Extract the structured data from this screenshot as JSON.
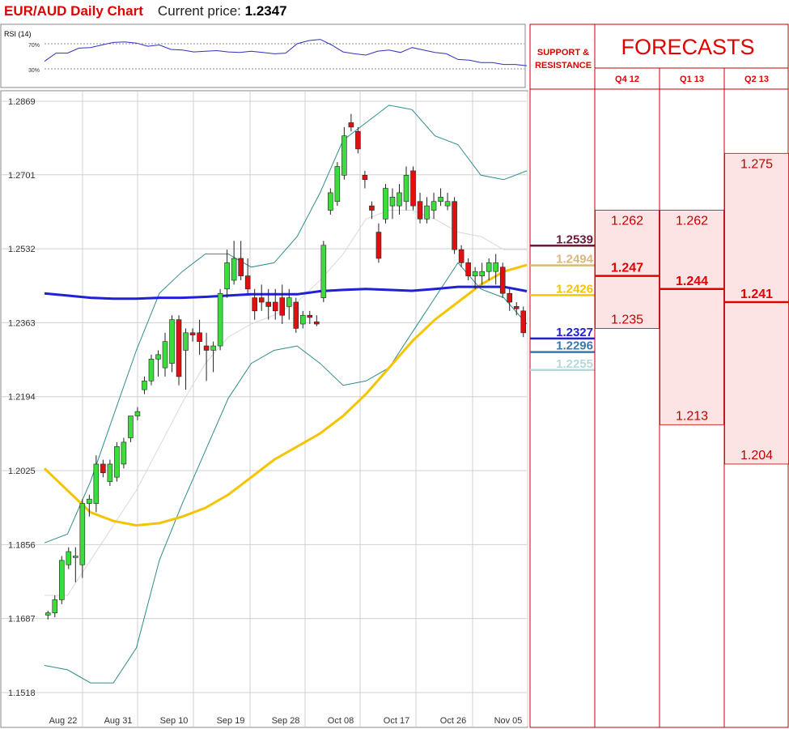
{
  "header": {
    "title": "EUR/AUD Daily Chart",
    "price_label": "Current price:",
    "price_value": "1.2347"
  },
  "rsi_panel": {
    "label": "RSI (14)",
    "upper_label": "70%",
    "lower_label": "30%",
    "values": [
      42,
      55,
      55,
      63,
      64,
      68,
      72,
      73,
      71,
      66,
      68,
      61,
      60,
      57,
      58,
      59,
      57,
      56,
      58,
      56,
      54,
      55,
      70,
      75,
      77,
      68,
      57,
      54,
      52,
      58,
      60,
      56,
      64,
      60,
      56,
      54,
      45,
      44,
      40,
      40,
      37,
      37,
      35
    ]
  },
  "support_panel": {
    "title_line1": "SUPPORT &",
    "title_line2": "RESISTANCE"
  },
  "forecast_panel": {
    "title": "FORECASTS",
    "columns": [
      {
        "label": "Q4 12",
        "high": "1.262",
        "mid": "1.247",
        "low": "1.235",
        "high_v": 1.262,
        "mid_v": 1.247,
        "low_v": 1.235
      },
      {
        "label": "Q1 13",
        "high": "1.262",
        "mid": "1.244",
        "low": "1.213",
        "high_v": 1.262,
        "mid_v": 1.244,
        "low_v": 1.213
      },
      {
        "label": "Q2 13",
        "high": "1.275",
        "mid": "1.241",
        "low": "1.204",
        "high_v": 1.275,
        "mid_v": 1.241,
        "low_v": 1.204
      }
    ]
  },
  "colors": {
    "title_red": "#e00000",
    "bull_candle": "#3ddc3d",
    "bear_candle": "#e01010",
    "ma_blue": "#2020d8",
    "ma_yellow": "#f5c400",
    "bollinger": "#2e8b8b",
    "bollinger_mid": "#d8d8d8",
    "forecast_fill": "#fde4e4"
  },
  "chart_data": {
    "type": "candlestick",
    "title": "EUR/AUD Daily Chart",
    "ylim": [
      1.1518,
      1.2869
    ],
    "y_ticks": [
      "1.2869",
      "1.2701",
      "1.2532",
      "1.2363",
      "1.2194",
      "1.2025",
      "1.1856",
      "1.1687",
      "1.1518"
    ],
    "x_ticks": [
      "Aug 22",
      "Aug 31",
      "Sep 10",
      "Sep 19",
      "Sep 28",
      "Oct 08",
      "Oct 17",
      "Oct 26",
      "Nov 05"
    ],
    "candles": [
      {
        "o": 1.1695,
        "h": 1.1705,
        "l": 1.1685,
        "c": 1.17
      },
      {
        "o": 1.17,
        "h": 1.174,
        "l": 1.169,
        "c": 1.173
      },
      {
        "o": 1.173,
        "h": 1.183,
        "l": 1.172,
        "c": 1.182
      },
      {
        "o": 1.181,
        "h": 1.185,
        "l": 1.18,
        "c": 1.184
      },
      {
        "o": 1.183,
        "h": 1.185,
        "l": 1.177,
        "c": 1.183
      },
      {
        "o": 1.181,
        "h": 1.196,
        "l": 1.178,
        "c": 1.195
      },
      {
        "o": 1.195,
        "h": 1.197,
        "l": 1.192,
        "c": 1.196
      },
      {
        "o": 1.195,
        "h": 1.206,
        "l": 1.193,
        "c": 1.204
      },
      {
        "o": 1.204,
        "h": 1.205,
        "l": 1.201,
        "c": 1.202
      },
      {
        "o": 1.2,
        "h": 1.205,
        "l": 1.199,
        "c": 1.204
      },
      {
        "o": 1.201,
        "h": 1.209,
        "l": 1.2,
        "c": 1.208
      },
      {
        "o": 1.204,
        "h": 1.21,
        "l": 1.203,
        "c": 1.209
      },
      {
        "o": 1.21,
        "h": 1.215,
        "l": 1.209,
        "c": 1.215
      },
      {
        "o": 1.215,
        "h": 1.217,
        "l": 1.214,
        "c": 1.216
      },
      {
        "o": 1.221,
        "h": 1.224,
        "l": 1.22,
        "c": 1.223
      },
      {
        "o": 1.223,
        "h": 1.229,
        "l": 1.222,
        "c": 1.228
      },
      {
        "o": 1.228,
        "h": 1.23,
        "l": 1.224,
        "c": 1.229
      },
      {
        "o": 1.226,
        "h": 1.234,
        "l": 1.224,
        "c": 1.232
      },
      {
        "o": 1.227,
        "h": 1.238,
        "l": 1.225,
        "c": 1.237
      },
      {
        "o": 1.237,
        "h": 1.238,
        "l": 1.222,
        "c": 1.224
      },
      {
        "o": 1.23,
        "h": 1.235,
        "l": 1.221,
        "c": 1.234
      },
      {
        "o": 1.234,
        "h": 1.235,
        "l": 1.232,
        "c": 1.2335
      },
      {
        "o": 1.234,
        "h": 1.237,
        "l": 1.229,
        "c": 1.232
      },
      {
        "o": 1.231,
        "h": 1.234,
        "l": 1.223,
        "c": 1.23
      },
      {
        "o": 1.23,
        "h": 1.232,
        "l": 1.225,
        "c": 1.231
      },
      {
        "o": 1.231,
        "h": 1.244,
        "l": 1.23,
        "c": 1.243
      },
      {
        "o": 1.244,
        "h": 1.253,
        "l": 1.242,
        "c": 1.25
      },
      {
        "o": 1.246,
        "h": 1.255,
        "l": 1.245,
        "c": 1.251
      },
      {
        "o": 1.251,
        "h": 1.255,
        "l": 1.246,
        "c": 1.247
      },
      {
        "o": 1.247,
        "h": 1.251,
        "l": 1.243,
        "c": 1.244
      },
      {
        "o": 1.242,
        "h": 1.244,
        "l": 1.237,
        "c": 1.239
      },
      {
        "o": 1.242,
        "h": 1.245,
        "l": 1.239,
        "c": 1.241
      },
      {
        "o": 1.241,
        "h": 1.244,
        "l": 1.237,
        "c": 1.24
      },
      {
        "o": 1.241,
        "h": 1.244,
        "l": 1.237,
        "c": 1.239
      },
      {
        "o": 1.242,
        "h": 1.245,
        "l": 1.236,
        "c": 1.238
      },
      {
        "o": 1.24,
        "h": 1.244,
        "l": 1.237,
        "c": 1.242
      },
      {
        "o": 1.241,
        "h": 1.242,
        "l": 1.234,
        "c": 1.235
      },
      {
        "o": 1.236,
        "h": 1.239,
        "l": 1.235,
        "c": 1.238
      },
      {
        "o": 1.238,
        "h": 1.239,
        "l": 1.236,
        "c": 1.2375
      },
      {
        "o": 1.2365,
        "h": 1.238,
        "l": 1.2355,
        "c": 1.236
      },
      {
        "o": 1.242,
        "h": 1.255,
        "l": 1.241,
        "c": 1.254
      },
      {
        "o": 1.262,
        "h": 1.267,
        "l": 1.261,
        "c": 1.266
      },
      {
        "o": 1.264,
        "h": 1.273,
        "l": 1.263,
        "c": 1.272
      },
      {
        "o": 1.27,
        "h": 1.281,
        "l": 1.269,
        "c": 1.279
      },
      {
        "o": 1.282,
        "h": 1.284,
        "l": 1.28,
        "c": 1.281
      },
      {
        "o": 1.28,
        "h": 1.281,
        "l": 1.275,
        "c": 1.276
      },
      {
        "o": 1.27,
        "h": 1.271,
        "l": 1.267,
        "c": 1.269
      },
      {
        "o": 1.263,
        "h": 1.264,
        "l": 1.26,
        "c": 1.262
      },
      {
        "o": 1.257,
        "h": 1.259,
        "l": 1.25,
        "c": 1.251
      },
      {
        "o": 1.26,
        "h": 1.268,
        "l": 1.259,
        "c": 1.267
      },
      {
        "o": 1.263,
        "h": 1.267,
        "l": 1.26,
        "c": 1.265
      },
      {
        "o": 1.263,
        "h": 1.268,
        "l": 1.261,
        "c": 1.266
      },
      {
        "o": 1.264,
        "h": 1.272,
        "l": 1.262,
        "c": 1.27
      },
      {
        "o": 1.271,
        "h": 1.272,
        "l": 1.262,
        "c": 1.263
      },
      {
        "o": 1.264,
        "h": 1.266,
        "l": 1.259,
        "c": 1.26
      },
      {
        "o": 1.26,
        "h": 1.265,
        "l": 1.259,
        "c": 1.263
      },
      {
        "o": 1.262,
        "h": 1.266,
        "l": 1.26,
        "c": 1.264
      },
      {
        "o": 1.264,
        "h": 1.267,
        "l": 1.263,
        "c": 1.265
      },
      {
        "o": 1.263,
        "h": 1.266,
        "l": 1.262,
        "c": 1.264
      },
      {
        "o": 1.264,
        "h": 1.265,
        "l": 1.252,
        "c": 1.253
      },
      {
        "o": 1.253,
        "h": 1.254,
        "l": 1.249,
        "c": 1.25
      },
      {
        "o": 1.25,
        "h": 1.251,
        "l": 1.246,
        "c": 1.247
      },
      {
        "o": 1.247,
        "h": 1.249,
        "l": 1.244,
        "c": 1.248
      },
      {
        "o": 1.247,
        "h": 1.25,
        "l": 1.245,
        "c": 1.248
      },
      {
        "o": 1.248,
        "h": 1.251,
        "l": 1.246,
        "c": 1.25
      },
      {
        "o": 1.248,
        "h": 1.252,
        "l": 1.245,
        "c": 1.25
      },
      {
        "o": 1.249,
        "h": 1.25,
        "l": 1.242,
        "c": 1.243
      },
      {
        "o": 1.243,
        "h": 1.244,
        "l": 1.239,
        "c": 1.241
      },
      {
        "o": 1.24,
        "h": 1.241,
        "l": 1.238,
        "c": 1.2395
      },
      {
        "o": 1.239,
        "h": 1.24,
        "l": 1.233,
        "c": 1.234
      }
    ],
    "ma_blue": [
      1.243,
      1.2425,
      1.242,
      1.2418,
      1.2418,
      1.242,
      1.242,
      1.2422,
      1.2425,
      1.2428,
      1.2428,
      1.2428,
      1.2435,
      1.2438,
      1.244,
      1.2438,
      1.2436,
      1.244,
      1.2445,
      1.2445,
      1.2445,
      1.2435
    ],
    "ma_yellow": [
      1.203,
      1.198,
      1.193,
      1.191,
      1.19,
      1.1905,
      1.192,
      1.194,
      1.197,
      1.201,
      1.205,
      1.208,
      1.211,
      1.215,
      1.22,
      1.226,
      1.232,
      1.237,
      1.241,
      1.245,
      1.248,
      1.2495
    ],
    "bb_upper": [
      1.186,
      1.188,
      1.2,
      1.215,
      1.23,
      1.243,
      1.248,
      1.252,
      1.252,
      1.249,
      1.25,
      1.256,
      1.266,
      1.278,
      1.282,
      1.286,
      1.285,
      1.279,
      1.277,
      1.27,
      1.269,
      1.271
    ],
    "bb_lower": [
      1.158,
      1.157,
      1.154,
      1.154,
      1.162,
      1.182,
      1.195,
      1.207,
      1.219,
      1.227,
      1.23,
      1.231,
      1.227,
      1.222,
      1.223,
      1.226,
      1.234,
      1.242,
      1.25,
      1.244,
      1.242,
      1.236
    ],
    "bb_mid": [
      1.174,
      1.174,
      1.182,
      1.19,
      1.198,
      1.208,
      1.218,
      1.227,
      1.233,
      1.236,
      1.238,
      1.241,
      1.246,
      1.252,
      1.26,
      1.262,
      1.262,
      1.26,
      1.257,
      1.256,
      1.253,
      1.253
    ],
    "levels": [
      {
        "label": "1.2539",
        "value": 1.2539,
        "color": "#6a1a3a",
        "bold": true
      },
      {
        "label": "1.2494",
        "value": 1.2494,
        "color": "#d9b87a",
        "bold": true
      },
      {
        "label": "1.2426",
        "value": 1.2426,
        "color": "#f5c400",
        "bold": true
      },
      {
        "label": "1.2327",
        "value": 1.2327,
        "color": "#2020d8",
        "bold": true
      },
      {
        "label": "1.2296",
        "value": 1.2296,
        "color": "#3a78a8",
        "bold": true
      },
      {
        "label": "1.2255",
        "value": 1.2255,
        "color": "#b7d9d9",
        "bold": true
      }
    ]
  }
}
